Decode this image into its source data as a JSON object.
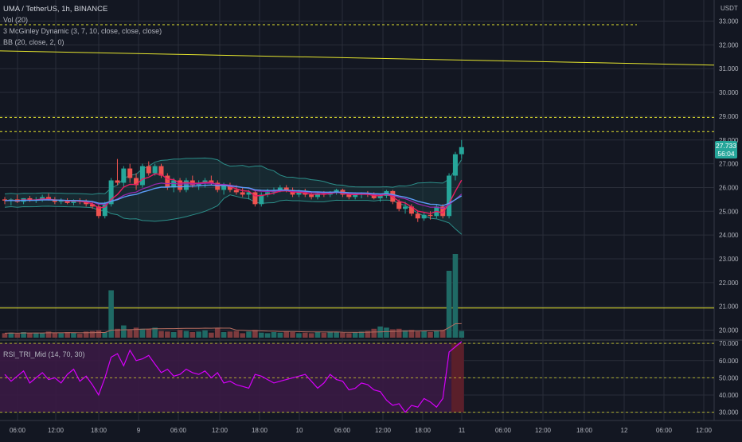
{
  "header": {
    "symbol_line": "UMA / TetherUS, 1h, BINANCE",
    "vol_legend": "Vol (20)",
    "mcginley_legend": "3 McGinley Dynamic (3, 7, 10, close, close, close)",
    "bb_legend": "BB (20, close, 2, 0)",
    "currency": "USDT"
  },
  "price_badge": {
    "value": "27.733",
    "countdown": "56:04"
  },
  "rsi_legend": "RSI_TRI_Mid (14, 70, 30)",
  "colors": {
    "background": "#131722",
    "grid": "#2a2e39",
    "up_candle": "#26a69a",
    "down_candle": "#ef5350",
    "hline_yellow": "#e6e62e",
    "bb_line": "#2c8f8a",
    "mcginley_pink": "#e91e63",
    "mcginley_blue": "#5b9cf6",
    "rsi_line": "#d500f9",
    "rsi_fill": "#3a1a44",
    "price_badge": "#26a69a"
  },
  "chart_data": [
    {
      "type": "candlestick",
      "name": "UMA / TetherUS, 1h, BINANCE",
      "ylim": [
        19.6,
        33.6
      ],
      "price_ticks": [
        "33.000",
        "32.000",
        "31.000",
        "30.000",
        "29.000",
        "28.000",
        "27.000",
        "26.000",
        "25.000",
        "24.000",
        "23.000",
        "22.000",
        "21.000",
        "20.000"
      ],
      "x_ticks": [
        "06:00",
        "12:00",
        "18:00",
        "9",
        "06:00",
        "12:00",
        "18:00",
        "10",
        "06:00",
        "12:00",
        "18:00",
        "11",
        "06:00",
        "12:00",
        "18:00",
        "12",
        "06:00",
        "12:00"
      ],
      "horizontal_lines": [
        {
          "price": 32.85,
          "style": "dashed"
        },
        {
          "price": 28.95,
          "style": "dashed"
        },
        {
          "price": 28.35,
          "style": "dashed"
        },
        {
          "price": 20.93,
          "style": "solid"
        }
      ],
      "trend_line": {
        "start_price": 31.75,
        "end_price": 31.15
      },
      "ohlc": [
        [
          25.5,
          25.6,
          25.3,
          25.45
        ],
        [
          25.45,
          25.55,
          25.25,
          25.5
        ],
        [
          25.5,
          25.7,
          25.35,
          25.4
        ],
        [
          25.4,
          25.55,
          25.3,
          25.55
        ],
        [
          25.55,
          25.65,
          25.4,
          25.45
        ],
        [
          25.45,
          25.6,
          25.35,
          25.5
        ],
        [
          25.5,
          25.7,
          25.4,
          25.6
        ],
        [
          25.6,
          25.75,
          25.45,
          25.5
        ],
        [
          25.5,
          25.6,
          25.3,
          25.4
        ],
        [
          25.4,
          25.55,
          25.3,
          25.45
        ],
        [
          25.45,
          25.55,
          25.3,
          25.35
        ],
        [
          25.35,
          25.5,
          25.25,
          25.45
        ],
        [
          25.45,
          25.55,
          25.3,
          25.4
        ],
        [
          25.4,
          25.5,
          25.2,
          25.3
        ],
        [
          25.3,
          25.4,
          25.1,
          25.2
        ],
        [
          25.2,
          25.3,
          24.7,
          24.8
        ],
        [
          24.8,
          25.4,
          24.7,
          25.3
        ],
        [
          25.3,
          26.4,
          25.2,
          26.3
        ],
        [
          26.3,
          27.2,
          26.1,
          26.2
        ],
        [
          26.2,
          26.9,
          26.0,
          26.8
        ],
        [
          26.8,
          27.0,
          26.2,
          26.4
        ],
        [
          26.4,
          26.6,
          25.9,
          26.1
        ],
        [
          26.1,
          27.0,
          26.0,
          26.9
        ],
        [
          26.9,
          27.1,
          26.5,
          26.6
        ],
        [
          26.6,
          27.0,
          26.5,
          26.9
        ],
        [
          26.9,
          27.0,
          26.4,
          26.5
        ],
        [
          26.5,
          26.6,
          25.9,
          26.0
        ],
        [
          26.0,
          26.4,
          25.8,
          26.3
        ],
        [
          26.3,
          26.4,
          25.8,
          25.9
        ],
        [
          25.9,
          26.4,
          25.8,
          26.3
        ],
        [
          26.3,
          26.5,
          26.0,
          26.1
        ],
        [
          26.1,
          26.3,
          25.9,
          26.2
        ],
        [
          26.2,
          26.4,
          26.0,
          26.3
        ],
        [
          26.3,
          26.5,
          26.1,
          26.2
        ],
        [
          26.2,
          26.3,
          25.8,
          25.9
        ],
        [
          25.9,
          26.2,
          25.7,
          26.1
        ],
        [
          26.1,
          26.2,
          25.8,
          25.9
        ],
        [
          25.9,
          26.1,
          25.7,
          25.8
        ],
        [
          25.8,
          26.0,
          25.6,
          25.7
        ],
        [
          25.7,
          25.9,
          25.5,
          25.8
        ],
        [
          25.8,
          25.9,
          25.2,
          25.3
        ],
        [
          25.3,
          25.8,
          25.2,
          25.7
        ],
        [
          25.7,
          25.95,
          25.6,
          25.8
        ],
        [
          25.8,
          26.0,
          25.7,
          25.9
        ],
        [
          25.9,
          26.1,
          25.8,
          26.0
        ],
        [
          26.0,
          26.1,
          25.8,
          25.9
        ],
        [
          25.9,
          26.0,
          25.6,
          25.7
        ],
        [
          25.7,
          25.9,
          25.6,
          25.8
        ],
        [
          25.8,
          25.95,
          25.6,
          25.7
        ],
        [
          25.7,
          25.8,
          25.5,
          25.6
        ],
        [
          25.6,
          25.8,
          25.5,
          25.75
        ],
        [
          25.75,
          25.85,
          25.6,
          25.7
        ],
        [
          25.7,
          25.85,
          25.6,
          25.8
        ],
        [
          25.8,
          25.95,
          25.7,
          25.9
        ],
        [
          25.9,
          25.95,
          25.6,
          25.7
        ],
        [
          25.7,
          25.8,
          25.5,
          25.6
        ],
        [
          25.6,
          25.8,
          25.5,
          25.7
        ],
        [
          25.7,
          25.8,
          25.55,
          25.75
        ],
        [
          25.75,
          25.85,
          25.6,
          25.7
        ],
        [
          25.7,
          25.8,
          25.5,
          25.55
        ],
        [
          25.55,
          25.7,
          25.4,
          25.65
        ],
        [
          25.65,
          25.9,
          25.55,
          25.85
        ],
        [
          25.85,
          25.9,
          25.3,
          25.4
        ],
        [
          25.4,
          25.5,
          25.0,
          25.1
        ],
        [
          25.1,
          25.4,
          24.9,
          25.2
        ],
        [
          25.2,
          25.3,
          24.8,
          24.9
        ],
        [
          24.9,
          25.0,
          24.55,
          24.7
        ],
        [
          24.7,
          24.95,
          24.6,
          24.85
        ],
        [
          24.85,
          25.0,
          24.65,
          24.8
        ],
        [
          24.8,
          25.3,
          24.7,
          25.2
        ],
        [
          25.2,
          25.3,
          24.7,
          24.8
        ],
        [
          24.8,
          26.6,
          24.7,
          26.5
        ],
        [
          26.5,
          27.5,
          26.3,
          27.4
        ],
        [
          27.4,
          28.0,
          27.2,
          27.7
        ]
      ]
    },
    {
      "type": "bar",
      "name": "Vol (20)",
      "values": [
        8,
        9,
        7,
        10,
        8,
        9,
        8,
        11,
        9,
        8,
        10,
        9,
        7,
        11,
        12,
        13,
        10,
        85,
        16,
        22,
        14,
        18,
        16,
        15,
        18,
        12,
        11,
        10,
        14,
        12,
        10,
        11,
        13,
        9,
        17,
        10,
        11,
        12,
        8,
        11,
        14,
        9,
        8,
        10,
        9,
        11,
        10,
        8,
        9,
        8,
        10,
        9,
        11,
        10,
        9,
        8,
        10,
        11,
        12,
        16,
        20,
        18,
        15,
        16,
        13,
        14,
        11,
        12,
        10,
        12,
        14,
        120,
        150,
        12
      ]
    },
    {
      "type": "line",
      "name": "RSI_TRI_Mid (14, 70, 30)",
      "ylim": [
        28,
        71
      ],
      "y_ticks": [
        "70.000",
        "60.000",
        "50.000",
        "40.000",
        "30.000"
      ],
      "levels": [
        70,
        50,
        30
      ],
      "values": [
        52,
        48,
        51,
        54,
        47,
        50,
        53,
        49,
        50,
        47,
        52,
        55,
        48,
        51,
        46,
        40,
        50,
        62,
        64,
        57,
        66,
        60,
        61,
        63,
        58,
        53,
        55,
        51,
        52,
        55,
        53,
        52,
        54,
        50,
        53,
        47,
        48,
        46,
        45,
        44,
        52,
        51,
        49,
        47,
        48,
        49,
        50,
        51,
        52,
        48,
        44,
        47,
        52,
        49,
        48,
        43,
        44,
        47,
        46,
        43,
        42,
        37,
        34,
        35,
        30,
        34,
        33,
        38,
        36,
        33,
        38,
        65,
        68,
        71
      ]
    }
  ]
}
